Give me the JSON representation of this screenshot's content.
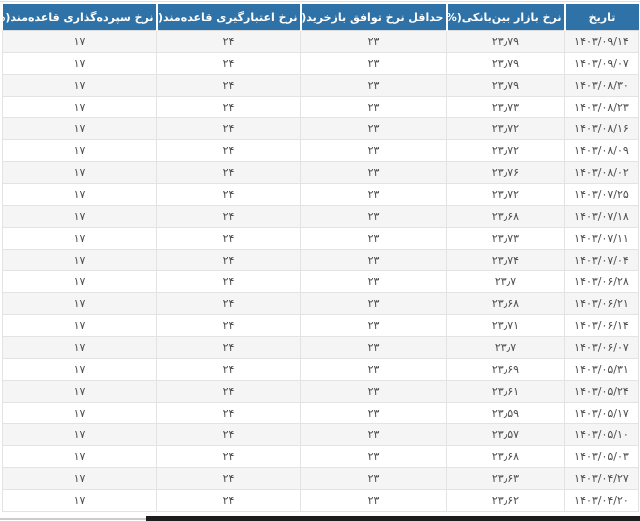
{
  "table": {
    "columns": [
      {
        "key": "date",
        "label": "تاریخ"
      },
      {
        "key": "interbank",
        "label": "نرخ بازار بین‌بانکی(%)"
      },
      {
        "key": "repo",
        "label": "حداقل نرخ توافق بازخرید(%)"
      },
      {
        "key": "credit",
        "label": "نرخ اعتبارگیری قاعده‌مند(%)"
      },
      {
        "key": "deposit",
        "label": "نرخ سپرده‌گذاری قاعده‌مند(%)"
      }
    ],
    "rows": [
      {
        "date": "۱۴۰۳/۰۹/۱۴",
        "interbank": "۲۳٫۷۹",
        "repo": "۲۳",
        "credit": "۲۴",
        "deposit": "۱۷"
      },
      {
        "date": "۱۴۰۳/۰۹/۰۷",
        "interbank": "۲۳٫۷۹",
        "repo": "۲۳",
        "credit": "۲۴",
        "deposit": "۱۷"
      },
      {
        "date": "۱۴۰۳/۰۸/۳۰",
        "interbank": "۲۳٫۷۹",
        "repo": "۲۳",
        "credit": "۲۴",
        "deposit": "۱۷"
      },
      {
        "date": "۱۴۰۳/۰۸/۲۳",
        "interbank": "۲۳٫۷۳",
        "repo": "۲۳",
        "credit": "۲۴",
        "deposit": "۱۷"
      },
      {
        "date": "۱۴۰۳/۰۸/۱۶",
        "interbank": "۲۳٫۷۲",
        "repo": "۲۳",
        "credit": "۲۴",
        "deposit": "۱۷"
      },
      {
        "date": "۱۴۰۳/۰۸/۰۹",
        "interbank": "۲۳٫۷۲",
        "repo": "۲۳",
        "credit": "۲۴",
        "deposit": "۱۷"
      },
      {
        "date": "۱۴۰۳/۰۸/۰۲",
        "interbank": "۲۳٫۷۶",
        "repo": "۲۳",
        "credit": "۲۴",
        "deposit": "۱۷"
      },
      {
        "date": "۱۴۰۳/۰۷/۲۵",
        "interbank": "۲۳٫۷۲",
        "repo": "۲۳",
        "credit": "۲۴",
        "deposit": "۱۷"
      },
      {
        "date": "۱۴۰۳/۰۷/۱۸",
        "interbank": "۲۳٫۶۸",
        "repo": "۲۳",
        "credit": "۲۴",
        "deposit": "۱۷"
      },
      {
        "date": "۱۴۰۳/۰۷/۱۱",
        "interbank": "۲۳٫۷۳",
        "repo": "۲۳",
        "credit": "۲۴",
        "deposit": "۱۷"
      },
      {
        "date": "۱۴۰۳/۰۷/۰۴",
        "interbank": "۲۳٫۷۴",
        "repo": "۲۳",
        "credit": "۲۴",
        "deposit": "۱۷"
      },
      {
        "date": "۱۴۰۳/۰۶/۲۸",
        "interbank": "۲۳٫۷",
        "repo": "۲۳",
        "credit": "۲۴",
        "deposit": "۱۷"
      },
      {
        "date": "۱۴۰۳/۰۶/۲۱",
        "interbank": "۲۳٫۶۸",
        "repo": "۲۳",
        "credit": "۲۴",
        "deposit": "۱۷"
      },
      {
        "date": "۱۴۰۳/۰۶/۱۴",
        "interbank": "۲۳٫۷۱",
        "repo": "۲۳",
        "credit": "۲۴",
        "deposit": "۱۷"
      },
      {
        "date": "۱۴۰۳/۰۶/۰۷",
        "interbank": "۲۳٫۷",
        "repo": "۲۳",
        "credit": "۲۴",
        "deposit": "۱۷"
      },
      {
        "date": "۱۴۰۳/۰۵/۳۱",
        "interbank": "۲۳٫۶۹",
        "repo": "۲۳",
        "credit": "۲۴",
        "deposit": "۱۷"
      },
      {
        "date": "۱۴۰۳/۰۵/۲۴",
        "interbank": "۲۳٫۶۱",
        "repo": "۲۳",
        "credit": "۲۴",
        "deposit": "۱۷"
      },
      {
        "date": "۱۴۰۳/۰۵/۱۷",
        "interbank": "۲۳٫۵۹",
        "repo": "۲۳",
        "credit": "۲۴",
        "deposit": "۱۷"
      },
      {
        "date": "۱۴۰۳/۰۵/۱۰",
        "interbank": "۲۳٫۵۷",
        "repo": "۲۳",
        "credit": "۲۴",
        "deposit": "۱۷"
      },
      {
        "date": "۱۴۰۳/۰۵/۰۳",
        "interbank": "۲۳٫۶۸",
        "repo": "۲۳",
        "credit": "۲۴",
        "deposit": "۱۷"
      },
      {
        "date": "۱۴۰۳/۰۴/۲۷",
        "interbank": "۲۳٫۶۳",
        "repo": "۲۳",
        "credit": "۲۴",
        "deposit": "۱۷"
      },
      {
        "date": "۱۴۰۳/۰۴/۲۰",
        "interbank": "۲۳٫۶۲",
        "repo": "۲۳",
        "credit": "۲۴",
        "deposit": "۱۷"
      }
    ]
  },
  "colors": {
    "header_bg": "#2e72a7",
    "header_text": "#ffffff",
    "stripe": "#f5f5f5",
    "border": "#e3e3e3",
    "text": "#4d4d4d",
    "bar_dark": "#1d1d1d",
    "bar_light": "#cccccc"
  }
}
